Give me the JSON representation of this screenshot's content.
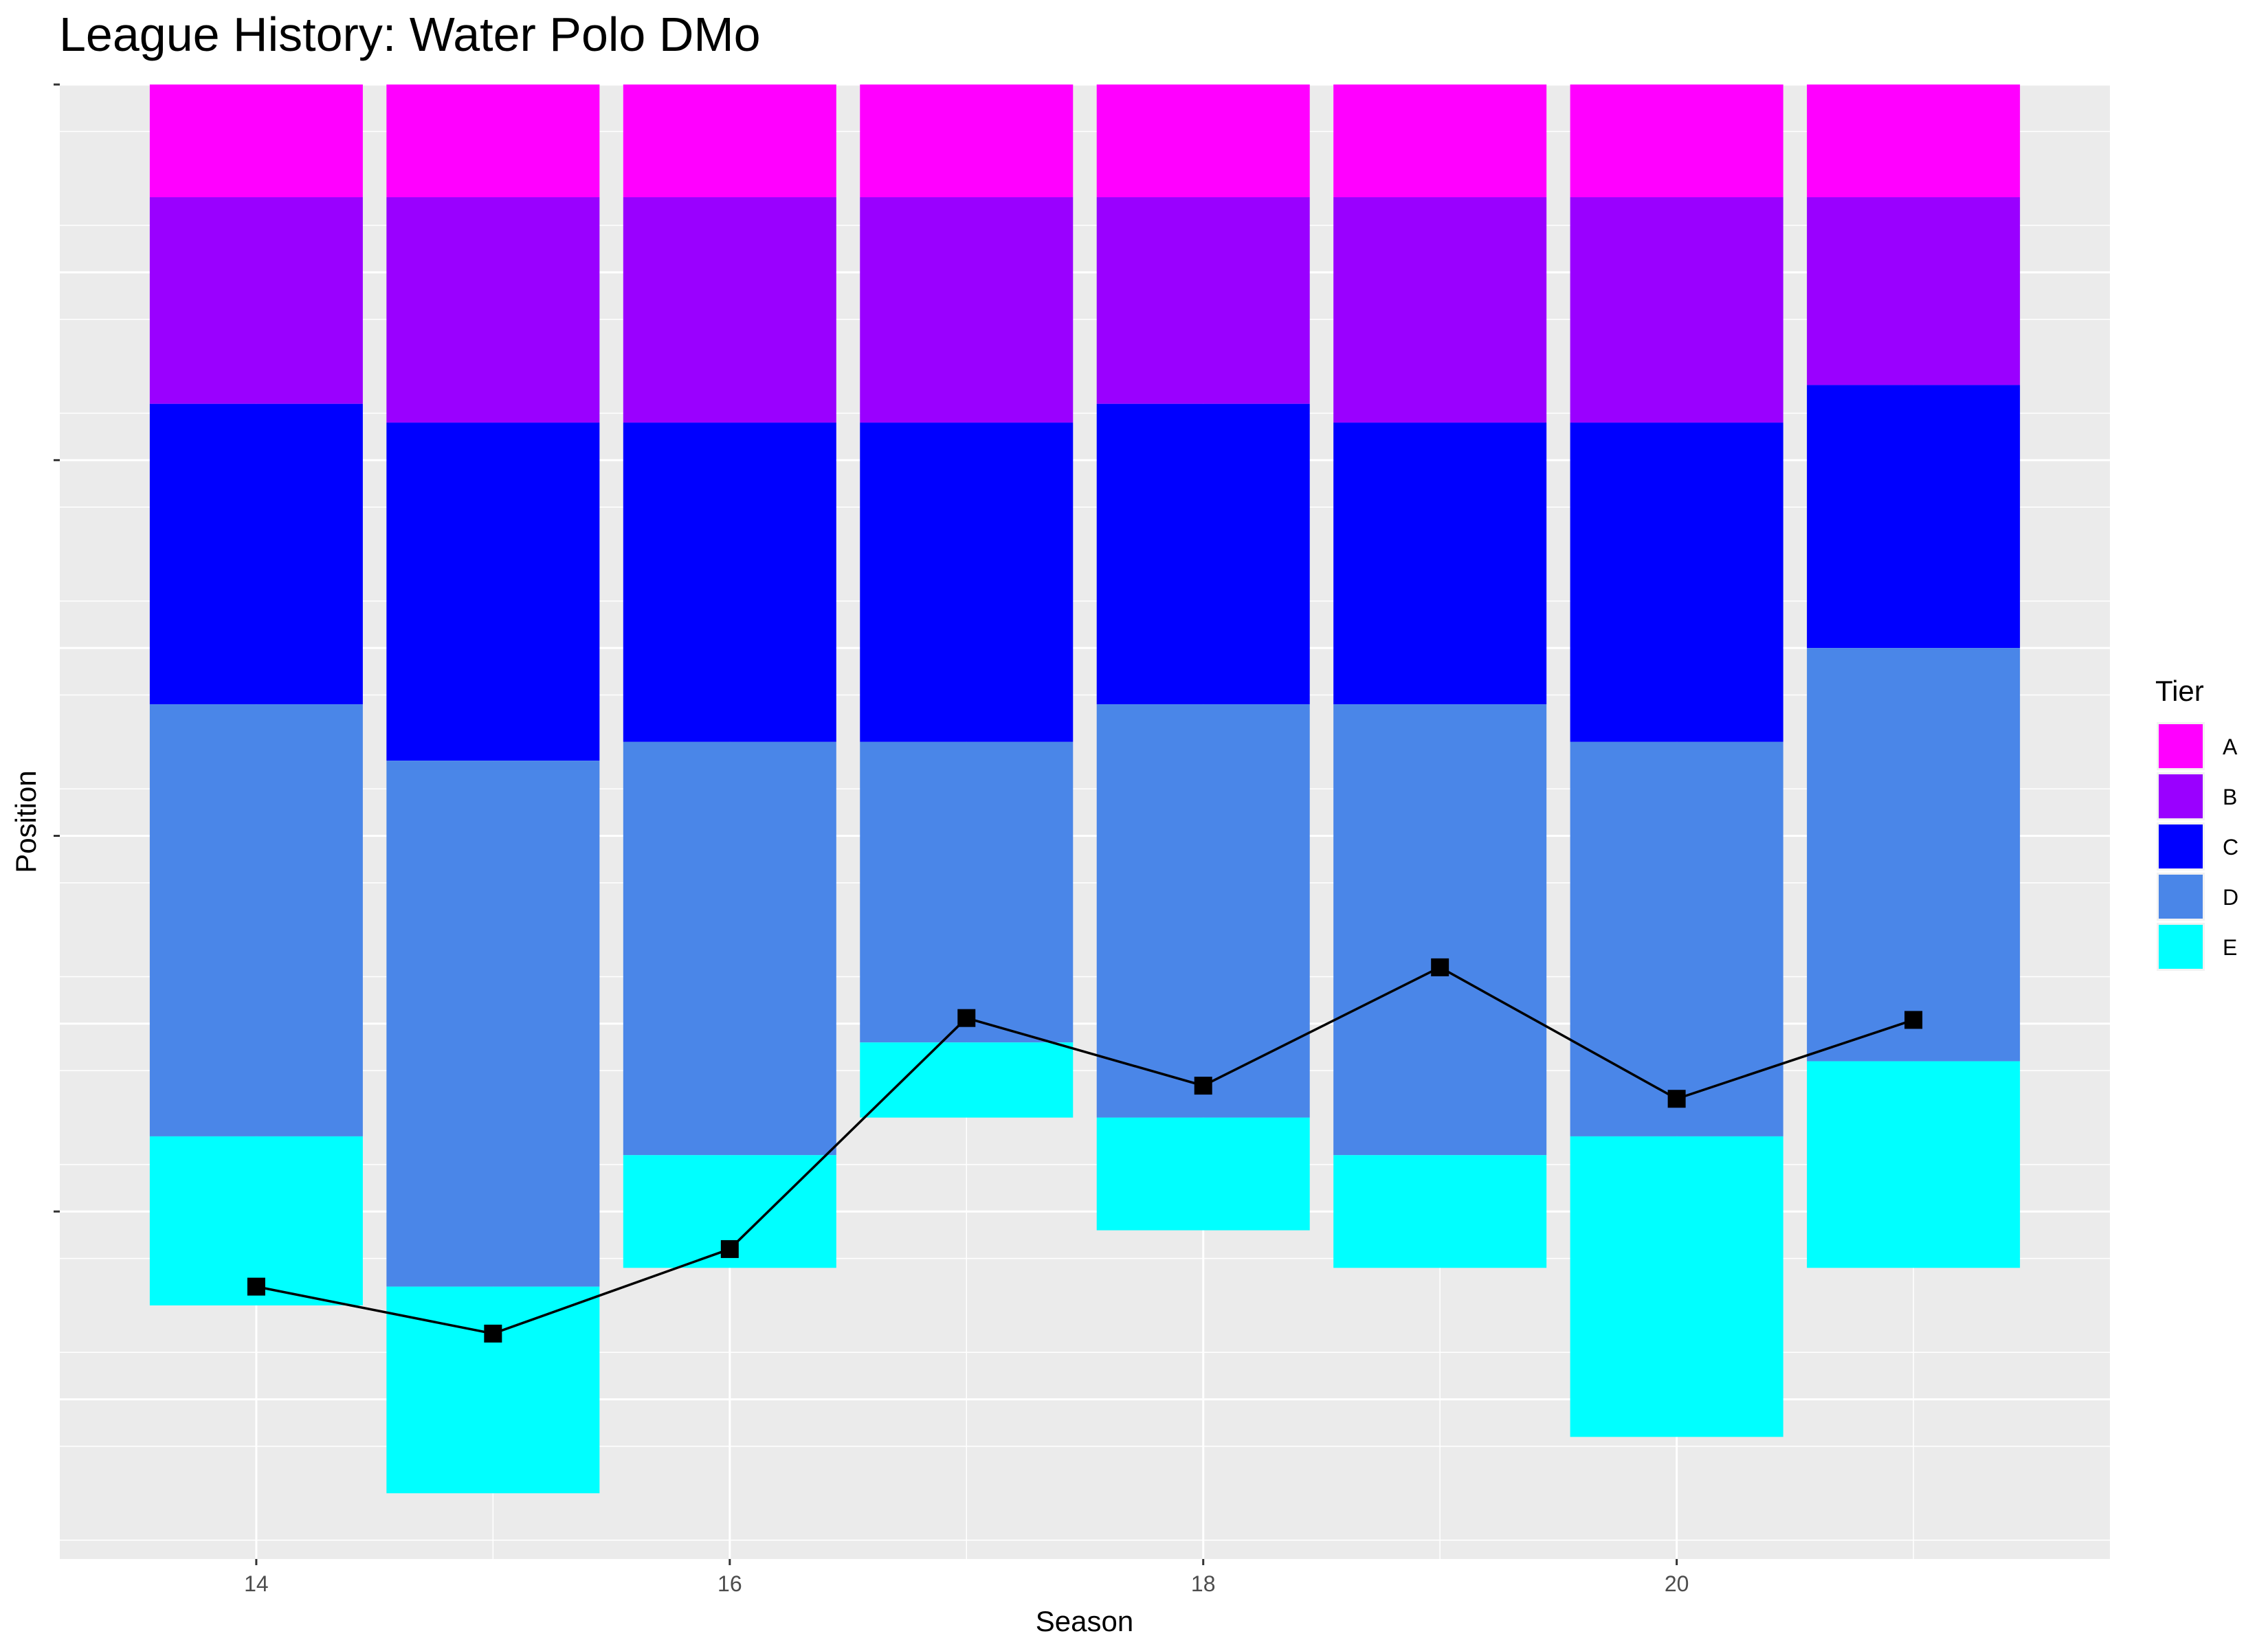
{
  "chart_data": {
    "type": "bar",
    "title": "League History: Water Polo DMo",
    "xlabel": "Season",
    "ylabel": "Position",
    "x_ticks": [
      "14",
      "16",
      "18",
      "20"
    ],
    "xlim": [
      13.17,
      21.83
    ],
    "ylim": [
      0,
      78.5
    ],
    "y_direction": "reversed",
    "grid": true,
    "legend": {
      "title": "Tier",
      "position": "right"
    },
    "tiers": [
      {
        "name": "A",
        "color": "#FF00FF"
      },
      {
        "name": "B",
        "color": "#9A00FF"
      },
      {
        "name": "C",
        "color": "#0000FF"
      },
      {
        "name": "D",
        "color": "#4A86E8"
      },
      {
        "name": "E",
        "color": "#00FFFF"
      }
    ],
    "seasons": [
      14,
      15,
      16,
      17,
      18,
      19,
      20,
      21
    ],
    "tier_sizes": [
      [
        6,
        11,
        16,
        23,
        9
      ],
      [
        6,
        12,
        18,
        28,
        11
      ],
      [
        6,
        12,
        17,
        22,
        6
      ],
      [
        6,
        12,
        17,
        16,
        4
      ],
      [
        6,
        11,
        16,
        22,
        6
      ],
      [
        6,
        12,
        15,
        24,
        6
      ],
      [
        6,
        12,
        17,
        21,
        16
      ],
      [
        6,
        10,
        14,
        22,
        11
      ]
    ],
    "line_series": {
      "name": "Position",
      "x": [
        14,
        15,
        16,
        17,
        18,
        19,
        20,
        21
      ],
      "y": [
        64,
        66.5,
        62,
        49.7,
        53.3,
        47,
        54,
        49.8
      ]
    }
  },
  "colors": {
    "panel_background": "#EBEBEB",
    "grid_major": "#FFFFFF",
    "line": "#000000"
  }
}
